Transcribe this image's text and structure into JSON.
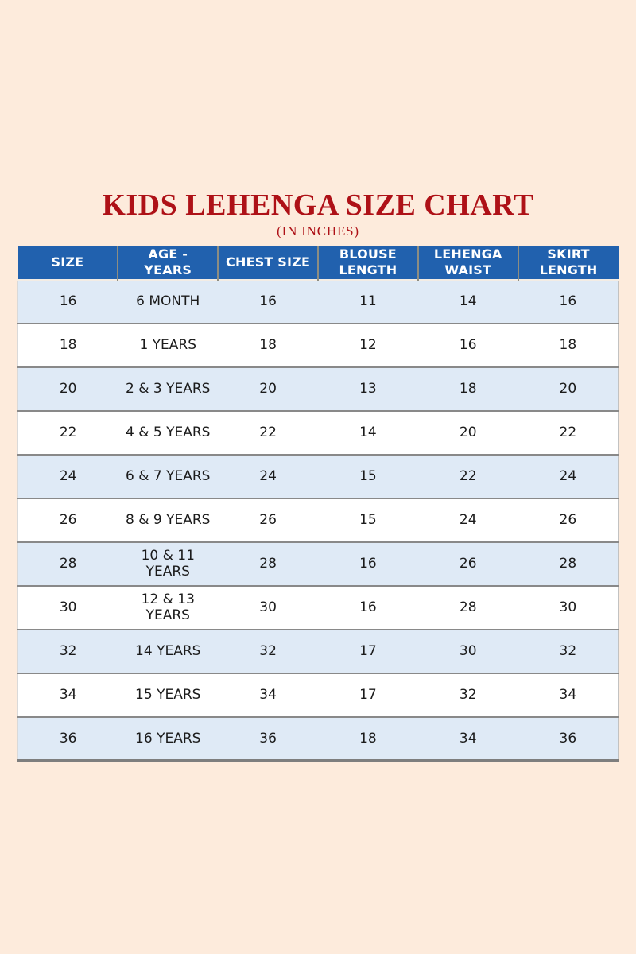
{
  "page": {
    "title": "KIDS LEHENGA SIZE CHART",
    "subtitle": "(IN INCHES)"
  },
  "colors": {
    "background": "#fdebdc",
    "header_bg": "#2161ae",
    "header_text": "#ffffff",
    "row_alt_bg": "#dfeaf6",
    "row_bg": "#ffffff",
    "title_color": "#ae1117",
    "separator": "#898989"
  },
  "chart_data": {
    "type": "table",
    "title": "KIDS LEHENGA SIZE CHART",
    "subtitle": "(IN INCHES)",
    "units": "inches",
    "columns": [
      "SIZE",
      "AGE - YEARS",
      "CHEST SIZE",
      "BLOUSE LENGTH",
      "LEHENGA WAIST",
      "SKIRT LENGTH"
    ],
    "rows": [
      [
        "16",
        "6 MONTH",
        "16",
        "11",
        "14",
        "16"
      ],
      [
        "18",
        "1 YEARS",
        "18",
        "12",
        "16",
        "18"
      ],
      [
        "20",
        "2 & 3 YEARS",
        "20",
        "13",
        "18",
        "20"
      ],
      [
        "22",
        "4 & 5 YEARS",
        "22",
        "14",
        "20",
        "22"
      ],
      [
        "24",
        "6 & 7 YEARS",
        "24",
        "15",
        "22",
        "24"
      ],
      [
        "26",
        "8 & 9 YEARS",
        "26",
        "15",
        "24",
        "26"
      ],
      [
        "28",
        "10 & 11 YEARS",
        "28",
        "16",
        "26",
        "28"
      ],
      [
        "30",
        "12 & 13 YEARS",
        "30",
        "16",
        "28",
        "30"
      ],
      [
        "32",
        "14 YEARS",
        "32",
        "17",
        "30",
        "32"
      ],
      [
        "34",
        "15 YEARS",
        "34",
        "17",
        "32",
        "34"
      ],
      [
        "36",
        "16 YEARS",
        "36",
        "18",
        "34",
        "36"
      ]
    ]
  }
}
